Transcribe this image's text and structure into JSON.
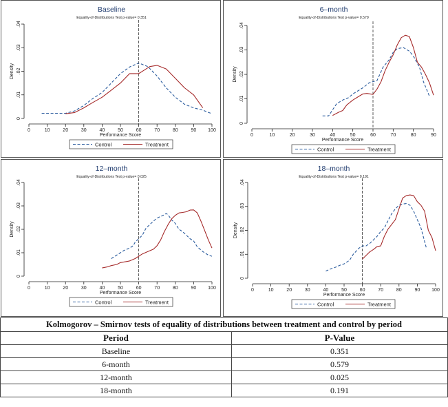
{
  "chart_data": [
    {
      "type": "line",
      "title": "Baseline",
      "subtitle": "Equality-of-Distributions Test p-value= 0.351",
      "xlabel": "Performance Score",
      "ylabel": "Density",
      "xlim": [
        0,
        100
      ],
      "ylim": [
        0,
        0.04
      ],
      "xticks": [
        "0",
        "10",
        "20",
        "30",
        "40",
        "50",
        "60",
        "70",
        "80",
        "90",
        "100"
      ],
      "yticks": [
        "0",
        ".01",
        ".02",
        ".03",
        ".04"
      ],
      "reference_line": 60,
      "series": [
        {
          "name": "Control",
          "style": "dash",
          "color": "#2b5c9e",
          "x": [
            7,
            10,
            15,
            20,
            25,
            30,
            35,
            40,
            45,
            50,
            55,
            60,
            65,
            70,
            75,
            80,
            85,
            90,
            95,
            100
          ],
          "y": [
            0.0022,
            0.0022,
            0.0022,
            0.0022,
            0.0032,
            0.0055,
            0.0085,
            0.011,
            0.015,
            0.019,
            0.0218,
            0.0235,
            0.022,
            0.018,
            0.013,
            0.009,
            0.006,
            0.0045,
            0.0035,
            0.002
          ]
        },
        {
          "name": "Treatment",
          "style": "solid",
          "color": "#a52a2a",
          "x": [
            20,
            25,
            30,
            35,
            40,
            45,
            50,
            55,
            60,
            63,
            66,
            70,
            75,
            80,
            85,
            90,
            95
          ],
          "y": [
            0.002,
            0.0025,
            0.0045,
            0.0068,
            0.009,
            0.012,
            0.015,
            0.019,
            0.019,
            0.0205,
            0.022,
            0.0225,
            0.021,
            0.017,
            0.013,
            0.01,
            0.0045
          ]
        }
      ]
    },
    {
      "type": "line",
      "title": "6–month",
      "subtitle": "Equality-of-Distributions Test p-value= 0.579",
      "xlabel": "Performance Score",
      "ylabel": "Density",
      "xlim": [
        0,
        90
      ],
      "ylim": [
        0,
        0.04
      ],
      "xticks": [
        "0",
        "10",
        "20",
        "30",
        "40",
        "50",
        "60",
        "70",
        "80",
        "90"
      ],
      "yticks": [
        "0",
        ".01",
        ".02",
        ".03",
        ".04"
      ],
      "reference_line": 60,
      "series": [
        {
          "name": "Control",
          "style": "dash",
          "color": "#2b5c9e",
          "x": [
            35,
            38,
            40,
            42,
            45,
            48,
            50,
            53,
            55,
            58,
            60,
            62,
            65,
            68,
            70,
            72,
            75,
            78,
            80,
            83,
            85,
            88
          ],
          "y": [
            0.003,
            0.003,
            0.0055,
            0.008,
            0.0095,
            0.0105,
            0.012,
            0.0135,
            0.0145,
            0.0165,
            0.017,
            0.0175,
            0.023,
            0.026,
            0.029,
            0.0305,
            0.031,
            0.0295,
            0.0275,
            0.023,
            0.017,
            0.011
          ]
        },
        {
          "name": "Treatment",
          "style": "solid",
          "color": "#a52a2a",
          "x": [
            40,
            43,
            45,
            47,
            50,
            53,
            55,
            57,
            60,
            62,
            64,
            66,
            68,
            70,
            72,
            74,
            76,
            78,
            80,
            82,
            84,
            86,
            88,
            90
          ],
          "y": [
            0.0032,
            0.0045,
            0.0052,
            0.0075,
            0.0095,
            0.011,
            0.012,
            0.0122,
            0.0118,
            0.014,
            0.017,
            0.0215,
            0.025,
            0.028,
            0.032,
            0.035,
            0.036,
            0.0355,
            0.031,
            0.025,
            0.023,
            0.02,
            0.0165,
            0.0115
          ]
        }
      ]
    },
    {
      "type": "line",
      "title": "12–month",
      "subtitle": "Equality-of-Distributions Test p-value= 0.025",
      "xlabel": "Performance Score",
      "ylabel": "Density",
      "xlim": [
        0,
        100
      ],
      "ylim": [
        0,
        0.04
      ],
      "xticks": [
        "0",
        "10",
        "20",
        "30",
        "40",
        "50",
        "60",
        "70",
        "80",
        "90",
        "100"
      ],
      "yticks": [
        "0",
        ".01",
        ".02",
        ".03",
        ".04"
      ],
      "reference_line": 60,
      "series": [
        {
          "name": "Control",
          "style": "dash",
          "color": "#2b5c9e",
          "x": [
            45,
            48,
            50,
            52,
            55,
            57,
            58,
            60,
            62,
            64,
            66,
            68,
            70,
            72,
            74,
            75,
            76,
            78,
            80,
            82,
            84,
            86,
            88,
            90,
            92,
            95,
            98,
            100
          ],
          "y": [
            0.0075,
            0.009,
            0.01,
            0.011,
            0.012,
            0.013,
            0.0145,
            0.016,
            0.0175,
            0.0205,
            0.022,
            0.0235,
            0.0248,
            0.0255,
            0.0262,
            0.0268,
            0.0262,
            0.024,
            0.0225,
            0.02,
            0.019,
            0.0175,
            0.016,
            0.015,
            0.0125,
            0.0105,
            0.009,
            0.0085
          ]
        },
        {
          "name": "Treatment",
          "style": "solid",
          "color": "#a52a2a",
          "x": [
            40,
            43,
            45,
            48,
            50,
            53,
            55,
            58,
            60,
            62,
            65,
            68,
            70,
            72,
            74,
            76,
            78,
            80,
            82,
            84,
            86,
            88,
            90,
            92,
            94,
            96,
            98,
            100
          ],
          "y": [
            0.0035,
            0.004,
            0.0045,
            0.005,
            0.0058,
            0.0062,
            0.0065,
            0.0075,
            0.0085,
            0.0095,
            0.0105,
            0.0115,
            0.013,
            0.0155,
            0.019,
            0.022,
            0.0245,
            0.026,
            0.027,
            0.0272,
            0.0275,
            0.0282,
            0.0283,
            0.027,
            0.0235,
            0.0195,
            0.0155,
            0.012
          ]
        }
      ]
    },
    {
      "type": "line",
      "title": "18–month",
      "subtitle": "Equality-of-Distributions Test p-value= 0.191",
      "xlabel": "Performance Score",
      "ylabel": "Density",
      "xlim": [
        0,
        100
      ],
      "ylim": [
        0,
        0.04
      ],
      "xticks": [
        "0",
        "10",
        "20",
        "30",
        "40",
        "50",
        "60",
        "70",
        "80",
        "90",
        "100"
      ],
      "yticks": [
        "0",
        ".01",
        ".02",
        ".03",
        ".04"
      ],
      "reference_line": 60,
      "series": [
        {
          "name": "Control",
          "style": "dash",
          "color": "#2b5c9e",
          "x": [
            40,
            43,
            45,
            48,
            50,
            53,
            55,
            58,
            60,
            62,
            64,
            66,
            68,
            70,
            72,
            74,
            76,
            78,
            80,
            82,
            84,
            86,
            88,
            90,
            92,
            95
          ],
          "y": [
            0.003,
            0.004,
            0.0045,
            0.0055,
            0.006,
            0.0075,
            0.01,
            0.0125,
            0.0135,
            0.0135,
            0.0145,
            0.016,
            0.0175,
            0.0195,
            0.021,
            0.024,
            0.027,
            0.029,
            0.0305,
            0.031,
            0.0312,
            0.0305,
            0.028,
            0.0245,
            0.021,
            0.0125
          ]
        },
        {
          "name": "Treatment",
          "style": "solid",
          "color": "#a52a2a",
          "x": [
            60,
            62,
            64,
            66,
            68,
            70,
            72,
            74,
            76,
            78,
            80,
            82,
            84,
            86,
            88,
            90,
            92,
            94,
            96,
            98,
            100
          ],
          "y": [
            0.008,
            0.0095,
            0.011,
            0.012,
            0.0132,
            0.0135,
            0.0175,
            0.0205,
            0.0225,
            0.0245,
            0.029,
            0.0335,
            0.0345,
            0.0348,
            0.0345,
            0.032,
            0.0305,
            0.028,
            0.02,
            0.017,
            0.0115
          ]
        }
      ]
    }
  ],
  "legend": {
    "control_label": "Control",
    "treatment_label": "Treatment"
  },
  "table": {
    "caption": "Kolmogorov – Smirnov tests of equality of distributions between treatment and control by period",
    "headers": [
      "Period",
      "P-Value"
    ],
    "rows": [
      [
        "Baseline",
        "0.351"
      ],
      [
        "6-month",
        "0.579"
      ],
      [
        "12-month",
        "0.025"
      ],
      [
        "18-month",
        "0.191"
      ]
    ]
  }
}
